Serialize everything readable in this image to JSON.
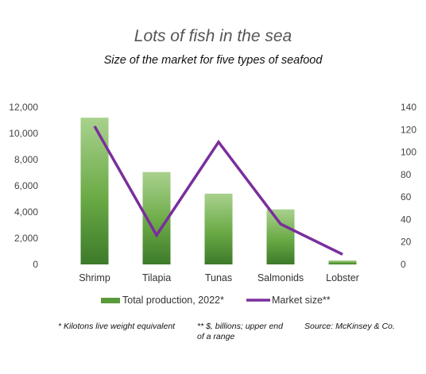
{
  "chart_data": {
    "type": "bar",
    "title": "Lots of fish in the sea",
    "subtitle": "Size of the market for five types of seafood",
    "categories": [
      "Shrimp",
      "Tilapia",
      "Tunas",
      "Salmonids",
      "Lobster"
    ],
    "series": [
      {
        "name": "Total production, 2022*",
        "type": "bar",
        "axis": "left",
        "values": [
          11200,
          7050,
          5400,
          4200,
          300
        ],
        "color": "#5a9a3a"
      },
      {
        "name": "Market size**",
        "type": "line",
        "axis": "right",
        "values": [
          123,
          26,
          109,
          36,
          9
        ],
        "color": "#7a2e9b"
      }
    ],
    "y_left": {
      "min": 0,
      "max": 12000,
      "ticks": [
        "0",
        "2,000",
        "4,000",
        "6,000",
        "8,000",
        "10,000",
        "12,000"
      ]
    },
    "y_right": {
      "min": 0,
      "max": 140,
      "ticks": [
        "0",
        "20",
        "40",
        "60",
        "80",
        "100",
        "120",
        "140"
      ]
    },
    "grid": false,
    "legend_position": "bottom"
  },
  "notes": {
    "kilotons": "* Kilotons live weight equivalent",
    "billions": "** $, billions; upper end of a range",
    "source": "Source: McKinsey & Co."
  }
}
